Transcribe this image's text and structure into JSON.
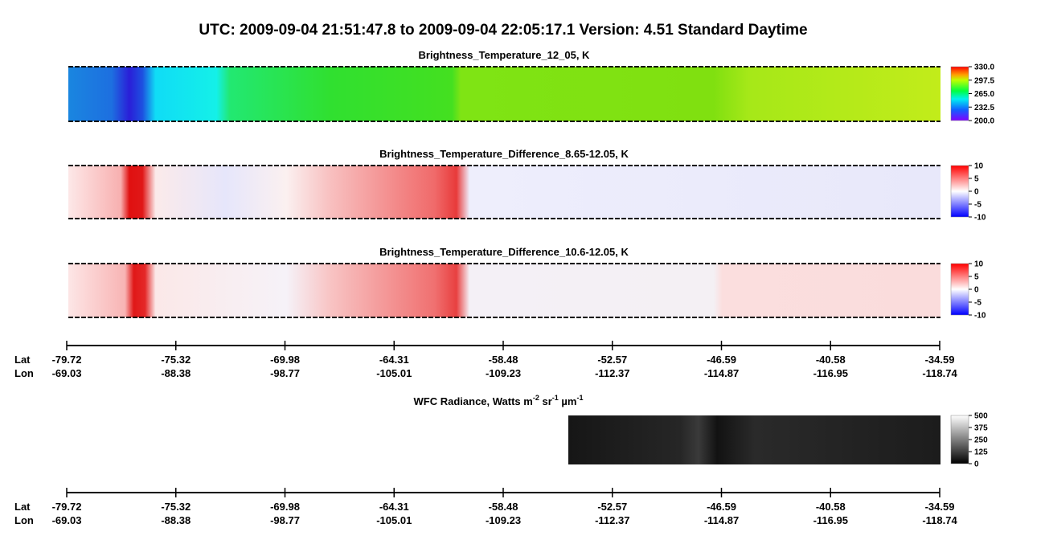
{
  "title": "UTC:  2009-09-04   21:51:47.8  to  2009-09-04   22:05:17.1    Version: 4.51  Standard Daytime",
  "panels": [
    {
      "title": "Brightness_Temperature_12_05, K",
      "colorbar": [
        "330.0",
        "297.5",
        "265.0",
        "232.5",
        "200.0"
      ]
    },
    {
      "title": "Brightness_Temperature_Difference_8.65-12.05, K",
      "colorbar": [
        "10",
        "5",
        "0",
        "-5",
        "-10"
      ]
    },
    {
      "title": "Brightness_Temperature_Difference_10.6-12.05, K",
      "colorbar": [
        "10",
        "5",
        "0",
        "-5",
        "-10"
      ]
    },
    {
      "title_parts": [
        "WFC Radiance, Watts m",
        "-2",
        " sr",
        "-1",
        " µm",
        "-1"
      ],
      "colorbar": [
        "500",
        "375",
        "250",
        "125",
        "0"
      ]
    }
  ],
  "axis": {
    "lat_label": "Lat",
    "lon_label": "Lon",
    "lat": [
      "-79.72",
      "-75.32",
      "-69.98",
      "-64.31",
      "-58.48",
      "-52.57",
      "-46.59",
      "-40.58",
      "-34.59"
    ],
    "lon": [
      "-69.03",
      "-88.38",
      "-98.77",
      "-105.01",
      "-109.23",
      "-112.37",
      "-114.87",
      "-116.95",
      "-118.74"
    ]
  }
}
